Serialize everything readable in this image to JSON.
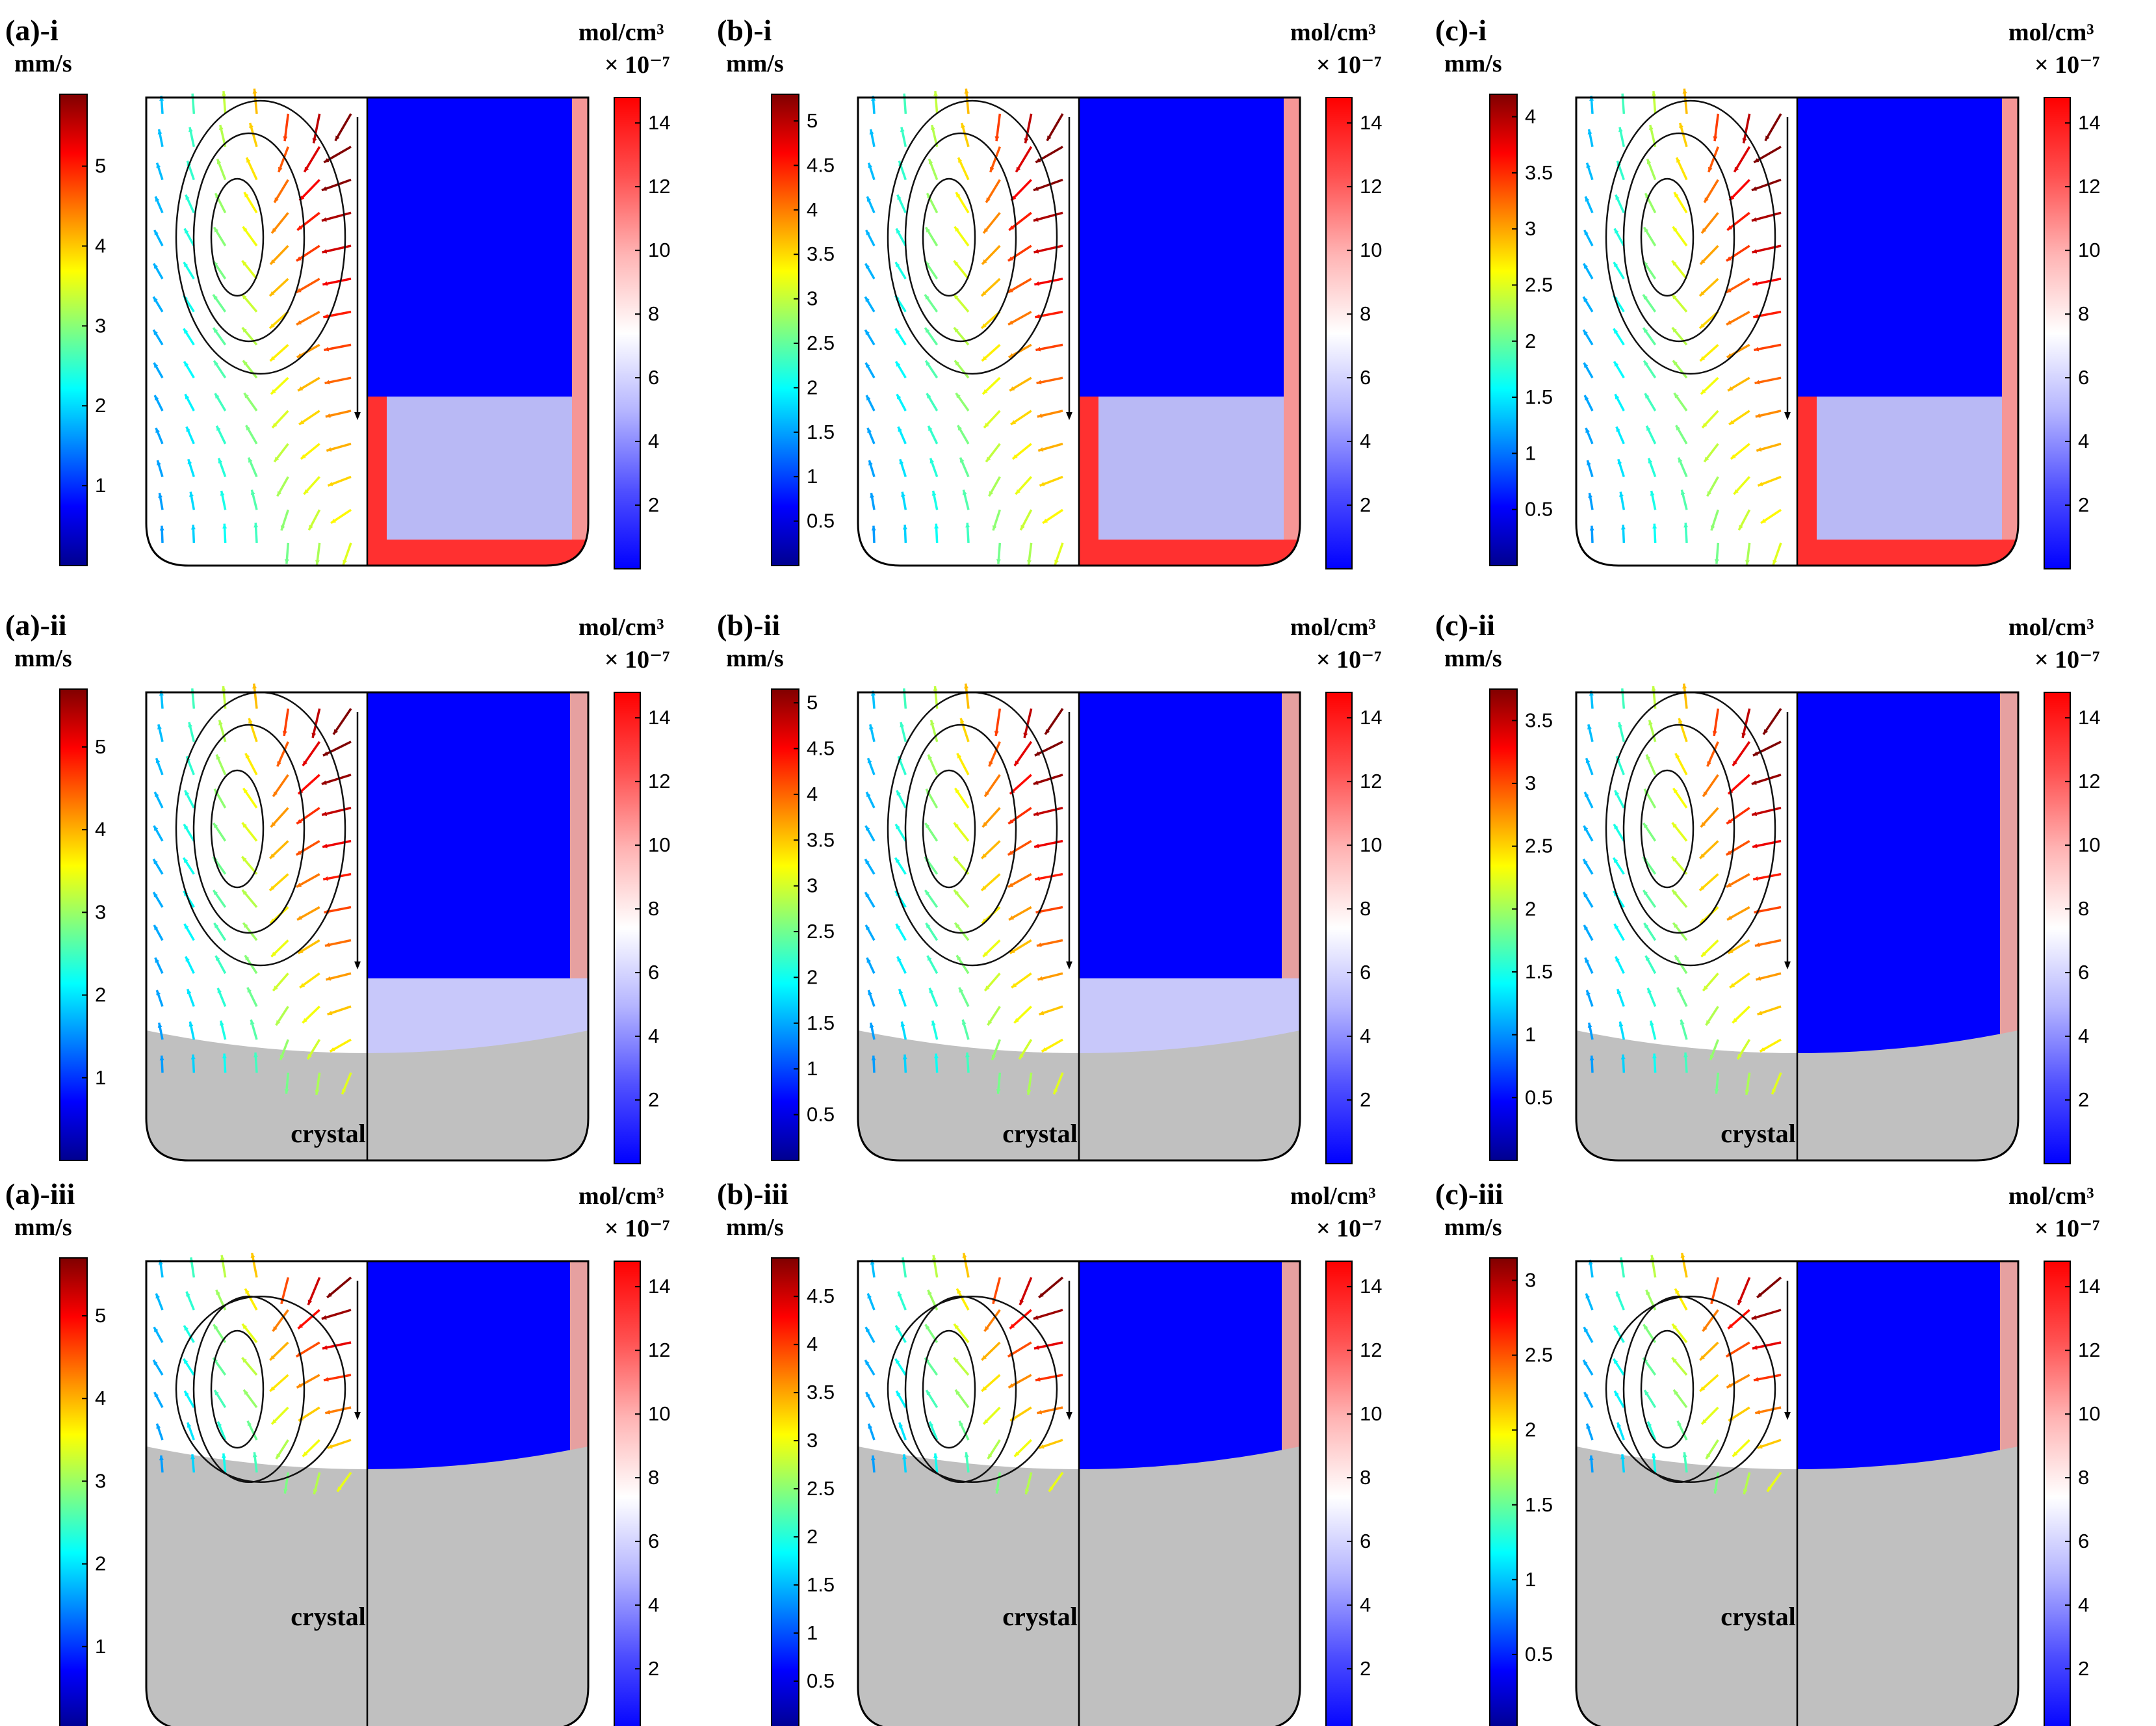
{
  "figure": {
    "velocity_colormap": [
      "#00008f",
      "#0000ff",
      "#0080ff",
      "#00ffff",
      "#80ff80",
      "#ffff00",
      "#ff8000",
      "#ff0000",
      "#800000"
    ],
    "concentration_colormap": [
      "#0000ff",
      "#5050ff",
      "#b4b4ff",
      "#ffffff",
      "#ffb4b4",
      "#ff5050",
      "#ff0000"
    ],
    "crystal_color": "#c0c0c0",
    "conc_unit": "mol/cm³",
    "conc_scale": "× 10⁻⁷",
    "velocity_unit": "mm/s",
    "crystal_text": "crystal",
    "panels": [
      {
        "id": "a-i",
        "label": "(a)-i",
        "vel_ticks": [
          "1",
          "2",
          "3",
          "4",
          "5"
        ],
        "vel_tick_values": [
          1,
          2,
          3,
          4,
          5
        ],
        "vel_max": 5.9,
        "conc_ticks": [
          "2",
          "4",
          "6",
          "8",
          "10",
          "12",
          "14"
        ],
        "crystal": false
      },
      {
        "id": "b-i",
        "label": "(b)-i",
        "vel_ticks": [
          "0.5",
          "1",
          "1.5",
          "2",
          "2.5",
          "3",
          "3.5",
          "4",
          "4.5",
          "5"
        ],
        "vel_tick_values": [
          0.5,
          1,
          1.5,
          2,
          2.5,
          3,
          3.5,
          4,
          4.5,
          5
        ],
        "vel_max": 5.3,
        "conc_ticks": [
          "2",
          "4",
          "6",
          "8",
          "10",
          "12",
          "14"
        ],
        "crystal": false
      },
      {
        "id": "c-i",
        "label": "(c)-i",
        "vel_ticks": [
          "0.5",
          "1",
          "1.5",
          "2",
          "2.5",
          "3",
          "3.5",
          "4"
        ],
        "vel_tick_values": [
          0.5,
          1,
          1.5,
          2,
          2.5,
          3,
          3.5,
          4
        ],
        "vel_max": 4.2,
        "conc_ticks": [
          "2",
          "4",
          "6",
          "8",
          "10",
          "12",
          "14"
        ],
        "crystal": false
      },
      {
        "id": "a-ii",
        "label": "(a)-ii",
        "vel_ticks": [
          "1",
          "2",
          "3",
          "4",
          "5"
        ],
        "vel_tick_values": [
          1,
          2,
          3,
          4,
          5
        ],
        "vel_max": 5.7,
        "conc_ticks": [
          "2",
          "4",
          "6",
          "8",
          "10",
          "12",
          "14"
        ],
        "crystal": true
      },
      {
        "id": "b-ii",
        "label": "(b)-ii",
        "vel_ticks": [
          "0.5",
          "1",
          "1.5",
          "2",
          "2.5",
          "3",
          "3.5",
          "4",
          "4.5",
          "5"
        ],
        "vel_tick_values": [
          0.5,
          1,
          1.5,
          2,
          2.5,
          3,
          3.5,
          4,
          4.5,
          5
        ],
        "vel_max": 5.15,
        "conc_ticks": [
          "2",
          "4",
          "6",
          "8",
          "10",
          "12",
          "14"
        ],
        "crystal": true
      },
      {
        "id": "c-ii",
        "label": "(c)-ii",
        "vel_ticks": [
          "0.5",
          "1",
          "1.5",
          "2",
          "2.5",
          "3",
          "3.5"
        ],
        "vel_tick_values": [
          0.5,
          1,
          1.5,
          2,
          2.5,
          3,
          3.5
        ],
        "vel_max": 3.75,
        "conc_ticks": [
          "2",
          "4",
          "6",
          "8",
          "10",
          "12",
          "14"
        ],
        "crystal": true
      },
      {
        "id": "a-iii",
        "label": "(a)-iii",
        "vel_ticks": [
          "1",
          "2",
          "3",
          "4",
          "5"
        ],
        "vel_tick_values": [
          1,
          2,
          3,
          4,
          5
        ],
        "vel_max": 5.7,
        "conc_ticks": [
          "2",
          "4",
          "6",
          "8",
          "10",
          "12",
          "14"
        ],
        "crystal": true
      },
      {
        "id": "b-iii",
        "label": "(b)-iii",
        "vel_ticks": [
          "0.5",
          "1",
          "1.5",
          "2",
          "2.5",
          "3",
          "3.5",
          "4",
          "4.5"
        ],
        "vel_tick_values": [
          0.5,
          1,
          1.5,
          2,
          2.5,
          3,
          3.5,
          4,
          4.5
        ],
        "vel_max": 4.9,
        "conc_ticks": [
          "2",
          "4",
          "6",
          "8",
          "10",
          "12",
          "14"
        ],
        "crystal": true
      },
      {
        "id": "c-iii",
        "label": "(c)-iii",
        "vel_ticks": [
          "0.5",
          "1",
          "1.5",
          "2",
          "2.5",
          "3"
        ],
        "vel_tick_values": [
          0.5,
          1,
          1.5,
          2,
          2.5,
          3
        ],
        "vel_max": 3.15,
        "conc_ticks": [
          "2",
          "4",
          "6",
          "8",
          "10",
          "12",
          "14"
        ],
        "crystal": true
      }
    ]
  }
}
